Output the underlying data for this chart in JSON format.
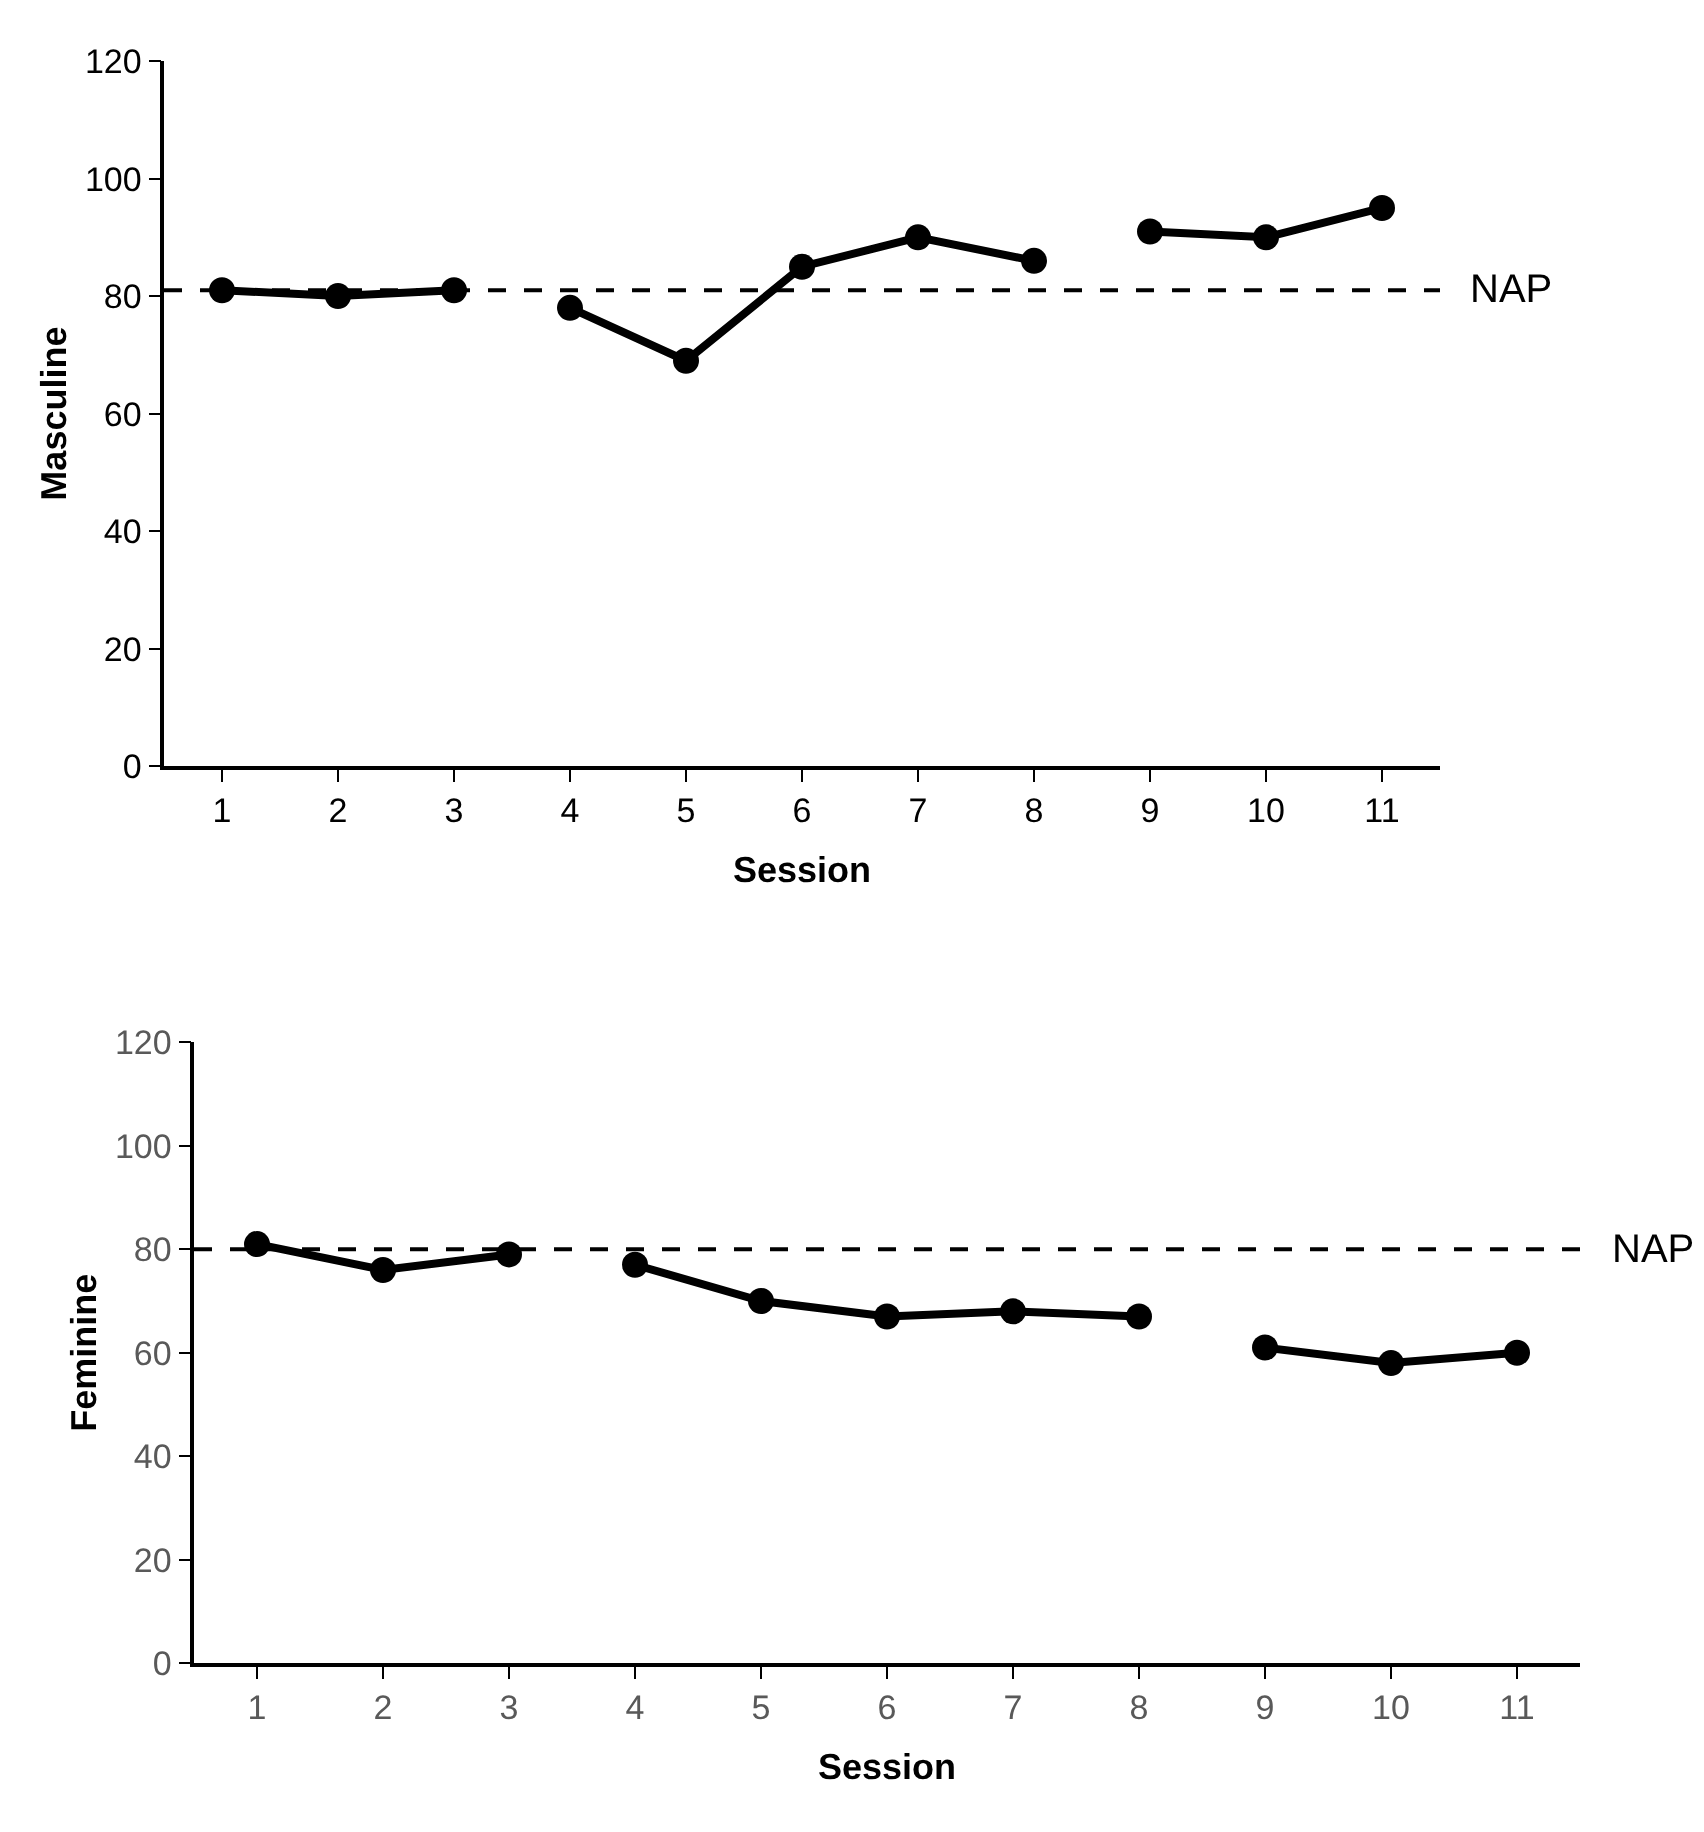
{
  "chart_data": [
    {
      "type": "line",
      "xlabel": "Session",
      "ylabel": "Masculine",
      "xlim": [
        0.5,
        11.5
      ],
      "xticks": [
        1,
        2,
        3,
        4,
        5,
        6,
        7,
        8,
        9,
        10,
        11
      ],
      "ylim": [
        0,
        120
      ],
      "yticks": [
        0,
        20,
        40,
        60,
        80,
        100,
        120
      ],
      "marker": "circle",
      "line_style": "solid",
      "series": [
        {
          "color": "#000000",
          "x": [
            1,
            2,
            3
          ],
          "values": [
            81,
            80,
            81
          ]
        },
        {
          "color": "#000000",
          "x": [
            4,
            5,
            6,
            7,
            8
          ],
          "values": [
            78,
            69,
            85,
            90,
            86
          ]
        },
        {
          "color": "#000000",
          "x": [
            9,
            10,
            11
          ],
          "values": [
            91,
            90,
            95
          ]
        }
      ],
      "ref_lines": [
        {
          "axis": "y",
          "value": 81,
          "label": "NAP",
          "color": "#000000",
          "line_style": "dashed"
        }
      ]
    },
    {
      "type": "line",
      "xlabel": "Session",
      "ylabel": "Feminine",
      "xlim": [
        0.5,
        11.5
      ],
      "xticks": [
        1,
        2,
        3,
        4,
        5,
        6,
        7,
        8,
        9,
        10,
        11
      ],
      "ylim": [
        0,
        120
      ],
      "yticks": [
        0,
        20,
        40,
        60,
        80,
        100,
        120
      ],
      "marker": "circle",
      "line_style": "solid",
      "series": [
        {
          "color": "#000000",
          "x": [
            1,
            2,
            3
          ],
          "values": [
            81,
            76,
            79
          ]
        },
        {
          "color": "#000000",
          "x": [
            4,
            5,
            6,
            7,
            8
          ],
          "values": [
            77,
            70,
            67,
            68,
            67
          ]
        },
        {
          "color": "#000000",
          "x": [
            9,
            10,
            11
          ],
          "values": [
            61,
            58,
            60
          ]
        }
      ],
      "ref_lines": [
        {
          "axis": "y",
          "value": 80,
          "label": "NAP",
          "color": "#000000",
          "line_style": "dashed"
        }
      ]
    }
  ]
}
